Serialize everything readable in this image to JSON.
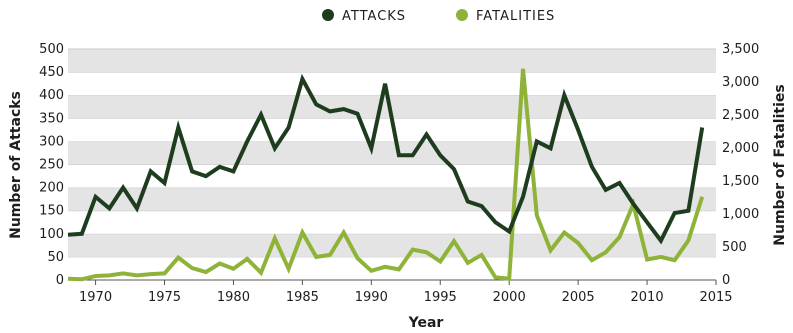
{
  "chart_data": {
    "type": "line",
    "xlabel": "Year",
    "ylabel_left": "Number of Attacks",
    "ylabel_right": "Number of Fatalities",
    "xlim": [
      1968,
      2015
    ],
    "xticks": [
      1970,
      1975,
      1980,
      1985,
      1990,
      1995,
      2000,
      2005,
      2010,
      2015
    ],
    "ylim_left": [
      0,
      500
    ],
    "yticks_left": [
      0,
      50,
      100,
      150,
      200,
      250,
      300,
      350,
      400,
      450,
      500
    ],
    "ylim_right": [
      0,
      3500
    ],
    "yticks_right": [
      0,
      500,
      1000,
      1500,
      2000,
      2500,
      3000,
      3500
    ],
    "ytick_labels_right": [
      "0",
      "500",
      "1,000",
      "1,500",
      "2,000",
      "2,500",
      "3,000",
      "3,500"
    ],
    "grid": "horizontal bands",
    "legend_position": "top-center",
    "x": [
      1968,
      1969,
      1970,
      1971,
      1972,
      1973,
      1974,
      1975,
      1976,
      1977,
      1978,
      1979,
      1980,
      1981,
      1982,
      1983,
      1984,
      1985,
      1986,
      1987,
      1988,
      1989,
      1990,
      1991,
      1992,
      1993,
      1994,
      1995,
      1996,
      1997,
      1998,
      1999,
      2000,
      2001,
      2002,
      2003,
      2004,
      2005,
      2006,
      2007,
      2008,
      2009,
      2010,
      2011,
      2012,
      2013,
      2014
    ],
    "series": [
      {
        "name": "ATTACKS",
        "axis": "left",
        "color": "#1e3d1e",
        "values": [
          98,
          100,
          180,
          155,
          200,
          155,
          235,
          210,
          330,
          235,
          225,
          245,
          235,
          300,
          358,
          285,
          330,
          435,
          380,
          365,
          370,
          360,
          285,
          425,
          270,
          270,
          315,
          270,
          240,
          170,
          160,
          125,
          105,
          180,
          300,
          285,
          400,
          325,
          245,
          195,
          210,
          165,
          125,
          85,
          145,
          150,
          330
        ]
      },
      {
        "name": "FATALITIES",
        "axis": "right",
        "color": "#8fb339",
        "values": [
          20,
          10,
          60,
          70,
          100,
          70,
          90,
          100,
          340,
          180,
          120,
          250,
          170,
          320,
          110,
          630,
          170,
          720,
          350,
          380,
          720,
          330,
          140,
          200,
          160,
          460,
          420,
          280,
          590,
          260,
          380,
          40,
          20,
          3200,
          980,
          450,
          720,
          560,
          300,
          420,
          650,
          1150,
          310,
          350,
          300,
          600,
          1260
        ]
      }
    ]
  }
}
